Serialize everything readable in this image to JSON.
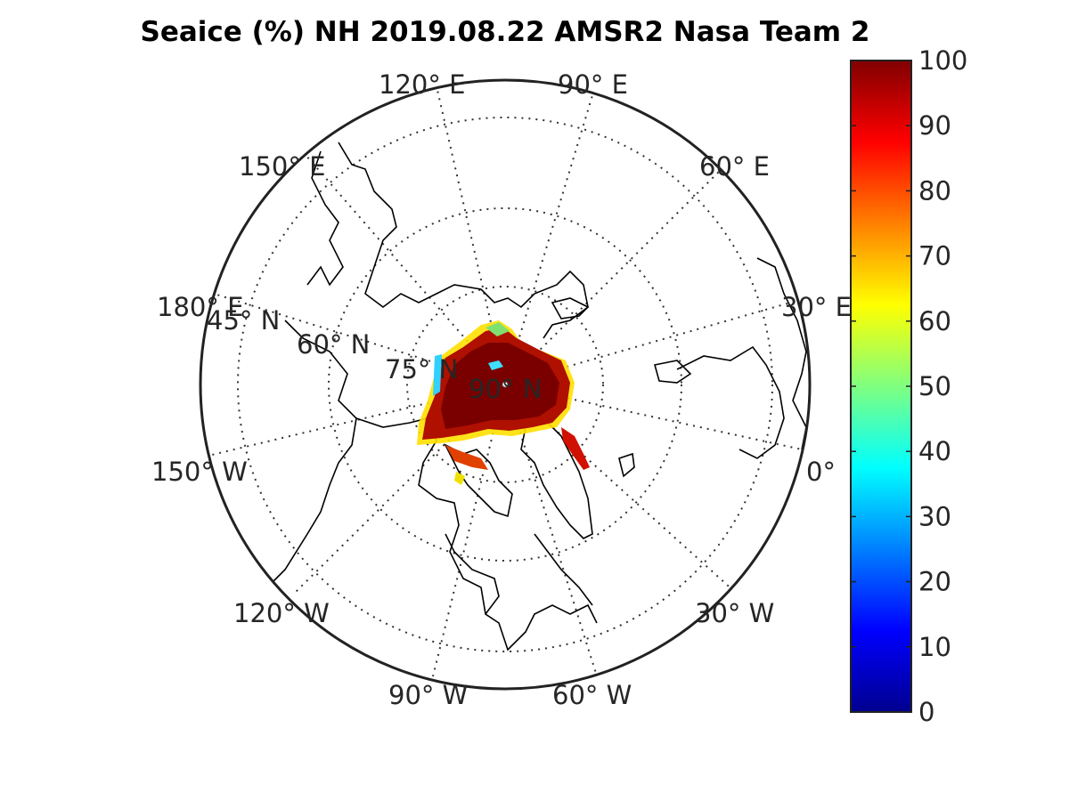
{
  "title": "Seaice (%) NH 2019.08.22 AMSR2 Nasa Team 2",
  "map": {
    "projection": "north-polar-stereographic",
    "latitude_circles": [
      {
        "label": "45° N"
      },
      {
        "label": "60° N"
      },
      {
        "label": "75° N"
      },
      {
        "label": "90° N"
      }
    ],
    "longitude_labels": [
      {
        "label": "120° E"
      },
      {
        "label": "90° E"
      },
      {
        "label": "60° E"
      },
      {
        "label": "30° E"
      },
      {
        "label": "0°"
      },
      {
        "label": "30° W"
      },
      {
        "label": "60° W"
      },
      {
        "label": "90° W"
      },
      {
        "label": "120° W"
      },
      {
        "label": "150° W"
      },
      {
        "label": "180° E"
      },
      {
        "label": "150° E"
      }
    ],
    "grid_style": "dotted",
    "coastline_color": "#000000"
  },
  "colorbar": {
    "colormap": "jet",
    "range": [
      0,
      100
    ],
    "ticks": [
      "0",
      "10",
      "20",
      "30",
      "40",
      "50",
      "60",
      "70",
      "80",
      "90",
      "100"
    ],
    "stops": [
      "#00008f",
      "#0000ff",
      "#00ffff",
      "#ffff00",
      "#ff0000",
      "#800000"
    ]
  },
  "colors": {
    "ice_high": "#8b0000",
    "ice_mid": "#d42000",
    "ice_edge": "#ffd000"
  }
}
